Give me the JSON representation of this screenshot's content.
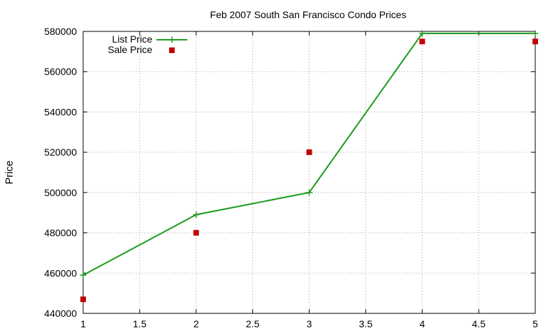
{
  "chart_data": {
    "type": "line",
    "title": "Feb 2007 South San Francisco Condo Prices",
    "xlabel": "",
    "ylabel": "Price",
    "xlim": [
      1,
      5
    ],
    "ylim": [
      440000,
      580000
    ],
    "x_ticks": [
      1,
      1.5,
      2,
      2.5,
      3,
      3.5,
      4,
      4.5,
      5
    ],
    "x_tick_labels": [
      "1",
      "1.5",
      "2",
      "2.5",
      "3",
      "3.5",
      "4",
      "4.5",
      "5"
    ],
    "y_ticks": [
      440000,
      460000,
      480000,
      500000,
      520000,
      540000,
      560000,
      580000
    ],
    "y_tick_labels": [
      "440000",
      "460000",
      "480000",
      "500000",
      "520000",
      "540000",
      "560000",
      "580000"
    ],
    "grid": true,
    "legend_position": "top-left",
    "series": [
      {
        "name": "List Price",
        "style": "linespoints",
        "marker": "plus",
        "color": "#1a9a1a",
        "x": [
          1,
          2,
          3,
          4,
          5
        ],
        "y": [
          459000,
          489000,
          500000,
          579000,
          579000
        ]
      },
      {
        "name": "Sale Price",
        "style": "points",
        "marker": "square",
        "color": "#c00000",
        "x": [
          1,
          2,
          3,
          4,
          5
        ],
        "y": [
          447000,
          480000,
          520000,
          575000,
          575000
        ]
      }
    ]
  }
}
